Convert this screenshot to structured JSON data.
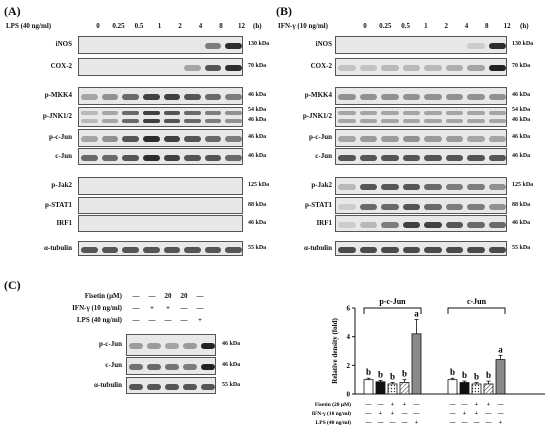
{
  "panelA": {
    "label": "(A)",
    "treatment": "LPS (40 ng/ml)",
    "lanes": [
      "0",
      "0.25",
      "0.5",
      "1",
      "2",
      "4",
      "8",
      "12"
    ],
    "unit": "(h)",
    "rows": [
      {
        "name": "iNOS",
        "kda": "130 kDa"
      },
      {
        "name": "COX-2",
        "kda": "70 kDa"
      },
      {
        "name": "p-MKK4",
        "kda": "46 kDa"
      },
      {
        "name": "p-JNK1/2",
        "kda": "54 kDa",
        "kda2": "46 kDa"
      },
      {
        "name": "p-c-Jun",
        "kda": "46 kDa"
      },
      {
        "name": "c-Jun",
        "kda": "46 kDa"
      },
      {
        "name": "p-Jak2",
        "kda": "125 kDa"
      },
      {
        "name": "p-STAT1",
        "kda": "88 kDa"
      },
      {
        "name": "IRF1",
        "kda": "46 kDa"
      },
      {
        "name": "α-tubulin",
        "kda": "55 kDa"
      }
    ]
  },
  "panelB": {
    "label": "(B)",
    "treatment": "IFN-γ (10 ng/ml)",
    "lanes": [
      "0",
      "0.25",
      "0.5",
      "1",
      "2",
      "4",
      "8",
      "12"
    ],
    "unit": "(h)",
    "rows": [
      {
        "name": "iNOS",
        "kda": "130 kDa"
      },
      {
        "name": "COX-2",
        "kda": "70 kDa"
      },
      {
        "name": "p-MKK4",
        "kda": "46 kDa"
      },
      {
        "name": "p-JNK1/2",
        "kda": "54 kDa",
        "kda2": "46 kDa"
      },
      {
        "name": "p-c-Jun",
        "kda": "46 kDa"
      },
      {
        "name": "c-Jun",
        "kda": "46 kDa"
      },
      {
        "name": "p-Jak2",
        "kda": "125 kDa"
      },
      {
        "name": "p-STAT1",
        "kda": "88 kDa"
      },
      {
        "name": "IRF1",
        "kda": "46 kDa"
      },
      {
        "name": "α-tubulin",
        "kda": "55 kDa"
      }
    ]
  },
  "panelC": {
    "label": "(C)",
    "conditions": [
      {
        "name": "Fisetin (μM)",
        "values": [
          "—",
          "—",
          "20",
          "20",
          "—"
        ]
      },
      {
        "name": "IFN-γ (10 ng/ml)",
        "values": [
          "—",
          "+",
          "+",
          "—",
          "—"
        ]
      },
      {
        "name": "LPS (40 ng/ml)",
        "values": [
          "—",
          "—",
          "—",
          "—",
          "+"
        ]
      }
    ],
    "rows": [
      {
        "name": "p-c-Jun",
        "kda": "46 kDa"
      },
      {
        "name": "c-Jun",
        "kda": "46 kDa"
      },
      {
        "name": "α-tubulin",
        "kda": "55 kDa"
      }
    ]
  },
  "chart_data": {
    "type": "bar",
    "ylabel": "Relative density (fold)",
    "ylim": [
      0,
      6
    ],
    "yticks": [
      "0",
      "2",
      "4",
      "6"
    ],
    "groups": [
      {
        "name": "p-c-Jun",
        "values": [
          1.0,
          0.85,
          0.7,
          0.8,
          4.2
        ],
        "errors": [
          0.1,
          0.1,
          0.1,
          0.2,
          1.0
        ],
        "letters": [
          "b",
          "b",
          "b",
          "b",
          "a"
        ]
      },
      {
        "name": "c-Jun",
        "values": [
          1.0,
          0.8,
          0.7,
          0.7,
          2.4
        ],
        "errors": [
          0.1,
          0.1,
          0.1,
          0.2,
          0.3
        ],
        "letters": [
          "b",
          "b",
          "b",
          "b",
          "a"
        ]
      }
    ],
    "bar_styles": [
      "white",
      "black",
      "dotted",
      "hatched",
      "gray"
    ],
    "conditions": [
      {
        "name": "Fisetin (20 μM)",
        "values": [
          "—",
          "—",
          "+",
          "+",
          "—"
        ]
      },
      {
        "name": "IFN-γ (10 ng/ml)",
        "values": [
          "—",
          "+",
          "+",
          "—",
          "—"
        ]
      },
      {
        "name": "LPS (40 ng/ml)",
        "values": [
          "—",
          "—",
          "—",
          "—",
          "+"
        ]
      }
    ]
  }
}
